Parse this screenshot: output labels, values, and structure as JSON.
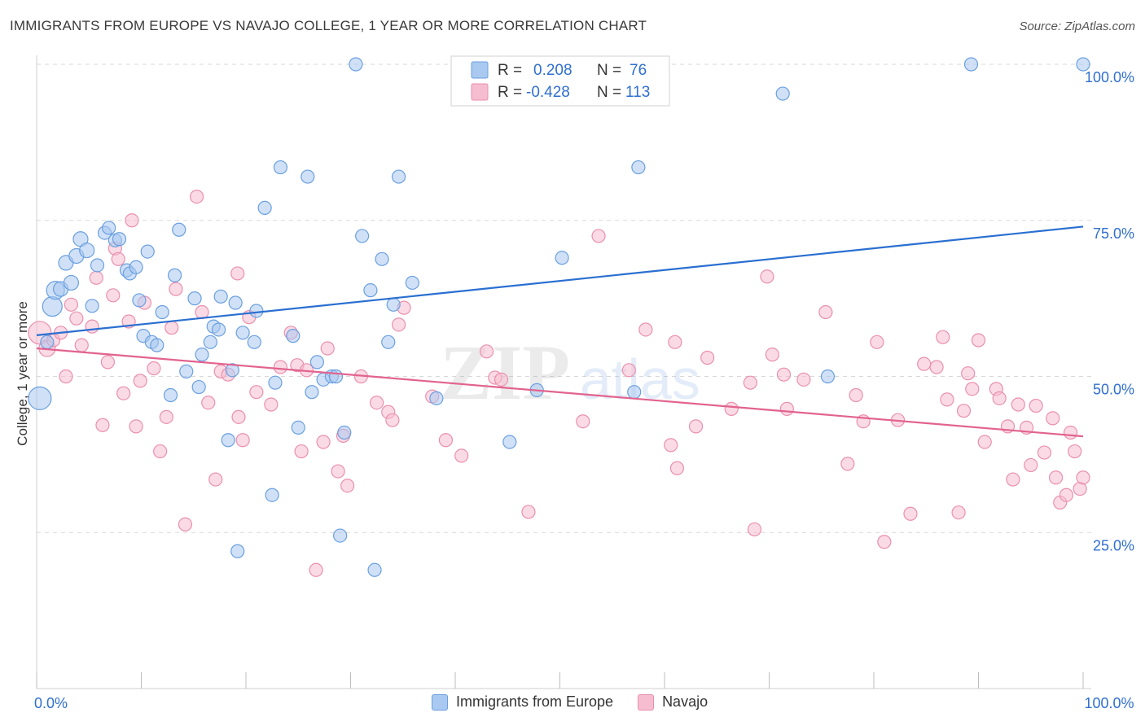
{
  "title": "IMMIGRANTS FROM EUROPE VS NAVAJO COLLEGE, 1 YEAR OR MORE CORRELATION CHART",
  "source": "Source: ZipAtlas.com",
  "watermark": {
    "zip": "ZIP",
    "atlas": "atlas"
  },
  "legend_box": {
    "r_label": "R =",
    "n_label": "N =",
    "rows": [
      {
        "series": "Immigrants from Europe",
        "r": "0.208",
        "n": "76"
      },
      {
        "series": "Navajo",
        "r": "-0.428",
        "n": "113"
      }
    ]
  },
  "colors": {
    "blue_fill": "#a9c9f0",
    "blue_stroke": "#6a9fe0",
    "blue_line": "#2a6fd1",
    "pink_fill": "#f6bdd0",
    "pink_stroke": "#ea8fae",
    "pink_line": "#e2638f",
    "value_text": "#2f6fd0",
    "grid": "#d8d8d8"
  },
  "chart_data": {
    "type": "scatter",
    "title": "IMMIGRANTS FROM EUROPE VS NAVAJO COLLEGE, 1 YEAR OR MORE CORRELATION CHART",
    "xlabel": "",
    "ylabel": "College, 1 year or more",
    "xlim": [
      0,
      100
    ],
    "ylim": [
      0,
      102
    ],
    "x_tick_labels": [
      {
        "value": 0,
        "label": "0.0%"
      },
      {
        "value": 100,
        "label": "100.0%"
      }
    ],
    "y_tick_labels": [
      {
        "value": 25,
        "label": "25.0%"
      },
      {
        "value": 50,
        "label": "50.0%"
      },
      {
        "value": 75,
        "label": "75.0%"
      },
      {
        "value": 100,
        "label": "100.0%"
      }
    ],
    "legend": [
      "Immigrants from Europe",
      "Navajo"
    ],
    "series": [
      {
        "name": "Immigrants from Europe",
        "r": 0.208,
        "n": 76,
        "trend": {
          "x": [
            0,
            100
          ],
          "y": [
            56.6,
            74.0
          ]
        },
        "points": [
          [
            0.3,
            46.5,
            14
          ],
          [
            1.0,
            55.5,
            8
          ],
          [
            1.5,
            61.2,
            12
          ],
          [
            1.8,
            63.8,
            11
          ],
          [
            2.3,
            64.0,
            9
          ],
          [
            2.8,
            68.2,
            9
          ],
          [
            3.3,
            65.0,
            9
          ],
          [
            3.8,
            69.3,
            9
          ],
          [
            4.2,
            72.0,
            9
          ],
          [
            4.8,
            70.2,
            9
          ],
          [
            5.3,
            61.3,
            8
          ],
          [
            5.8,
            67.8,
            8
          ],
          [
            6.5,
            73.0,
            8
          ],
          [
            6.9,
            73.8,
            8
          ],
          [
            7.5,
            71.8,
            8
          ],
          [
            7.9,
            72.0,
            8
          ],
          [
            8.6,
            67.0,
            8
          ],
          [
            8.9,
            66.5,
            8
          ],
          [
            9.5,
            67.5,
            8
          ],
          [
            9.8,
            62.2,
            8
          ],
          [
            10.6,
            70.0,
            8
          ],
          [
            10.2,
            56.5,
            8
          ],
          [
            11.0,
            55.5,
            8
          ],
          [
            11.5,
            55.0,
            8
          ],
          [
            12.0,
            60.3,
            8
          ],
          [
            12.8,
            47.0,
            8
          ],
          [
            13.2,
            66.2,
            8
          ],
          [
            13.6,
            73.5,
            8
          ],
          [
            14.3,
            50.8,
            8
          ],
          [
            15.1,
            62.5,
            8
          ],
          [
            15.5,
            48.3,
            8
          ],
          [
            15.8,
            53.5,
            8
          ],
          [
            16.6,
            55.5,
            8
          ],
          [
            16.9,
            58.0,
            8
          ],
          [
            17.4,
            57.5,
            8
          ],
          [
            17.6,
            62.8,
            8
          ],
          [
            18.7,
            51.0,
            8
          ],
          [
            18.3,
            39.8,
            8
          ],
          [
            19.0,
            61.8,
            8
          ],
          [
            19.2,
            22.0,
            8
          ],
          [
            19.7,
            57.0,
            8
          ],
          [
            20.8,
            55.5,
            8
          ],
          [
            21.0,
            60.5,
            8
          ],
          [
            21.8,
            77.0,
            8
          ],
          [
            22.5,
            31.0,
            8
          ],
          [
            22.8,
            49.0,
            8
          ],
          [
            23.3,
            83.5,
            8
          ],
          [
            24.5,
            56.5,
            8
          ],
          [
            25.0,
            41.8,
            8
          ],
          [
            25.9,
            82.0,
            8
          ],
          [
            26.3,
            47.5,
            8
          ],
          [
            26.8,
            52.3,
            8
          ],
          [
            27.4,
            49.5,
            8
          ],
          [
            28.2,
            50.0,
            8
          ],
          [
            28.6,
            50.0,
            8
          ],
          [
            29.0,
            24.5,
            8
          ],
          [
            29.4,
            41.0,
            8
          ],
          [
            30.5,
            100.0,
            8
          ],
          [
            31.1,
            72.5,
            8
          ],
          [
            31.9,
            63.8,
            8
          ],
          [
            32.3,
            19.0,
            8
          ],
          [
            33.0,
            68.8,
            8
          ],
          [
            33.6,
            55.5,
            8
          ],
          [
            34.1,
            61.5,
            8
          ],
          [
            34.6,
            82.0,
            8
          ],
          [
            35.9,
            65.0,
            8
          ],
          [
            38.2,
            46.5,
            8
          ],
          [
            45.2,
            39.5,
            8
          ],
          [
            47.8,
            47.8,
            8
          ],
          [
            50.2,
            69.0,
            8
          ],
          [
            57.1,
            47.5,
            8
          ],
          [
            57.5,
            83.5,
            8
          ],
          [
            71.3,
            95.3,
            8
          ],
          [
            75.6,
            50.0,
            8
          ],
          [
            89.3,
            100.0,
            8
          ],
          [
            100.0,
            100.0,
            8
          ]
        ]
      },
      {
        "name": "Navajo",
        "r": -0.428,
        "n": 113,
        "trend": {
          "x": [
            0,
            100
          ],
          "y": [
            54.5,
            40.4
          ]
        },
        "points": [
          [
            0.3,
            57.0,
            14
          ],
          [
            1.0,
            54.5,
            10
          ],
          [
            1.6,
            55.8,
            8
          ],
          [
            2.3,
            57.0,
            8
          ],
          [
            2.8,
            50.0,
            8
          ],
          [
            3.3,
            61.5,
            8
          ],
          [
            3.8,
            59.3,
            8
          ],
          [
            4.3,
            55.0,
            8
          ],
          [
            5.3,
            58.0,
            8
          ],
          [
            5.7,
            65.8,
            8
          ],
          [
            6.3,
            42.2,
            8
          ],
          [
            6.8,
            52.3,
            8
          ],
          [
            7.3,
            63.0,
            8
          ],
          [
            7.5,
            70.5,
            8
          ],
          [
            7.8,
            68.8,
            8
          ],
          [
            8.3,
            47.3,
            8
          ],
          [
            8.8,
            58.8,
            8
          ],
          [
            9.1,
            75.0,
            8
          ],
          [
            9.5,
            42.0,
            8
          ],
          [
            9.9,
            49.3,
            8
          ],
          [
            10.3,
            61.8,
            8
          ],
          [
            11.2,
            51.3,
            8
          ],
          [
            11.8,
            38.0,
            8
          ],
          [
            12.4,
            43.5,
            8
          ],
          [
            12.9,
            57.8,
            8
          ],
          [
            13.3,
            64.0,
            8
          ],
          [
            14.2,
            26.3,
            8
          ],
          [
            15.3,
            78.8,
            8
          ],
          [
            15.8,
            60.3,
            8
          ],
          [
            16.4,
            45.8,
            8
          ],
          [
            17.1,
            33.5,
            8
          ],
          [
            17.6,
            50.8,
            8
          ],
          [
            18.3,
            50.3,
            8
          ],
          [
            19.2,
            66.5,
            8
          ],
          [
            19.3,
            43.5,
            8
          ],
          [
            19.7,
            39.8,
            8
          ],
          [
            20.3,
            59.5,
            8
          ],
          [
            21.0,
            47.5,
            8
          ],
          [
            22.4,
            45.5,
            8
          ],
          [
            23.3,
            51.5,
            8
          ],
          [
            24.3,
            57.0,
            8
          ],
          [
            24.9,
            51.8,
            8
          ],
          [
            25.3,
            38.0,
            8
          ],
          [
            25.8,
            51.0,
            8
          ],
          [
            26.7,
            19.0,
            8
          ],
          [
            27.4,
            39.5,
            8
          ],
          [
            27.8,
            54.5,
            8
          ],
          [
            28.8,
            34.8,
            8
          ],
          [
            29.3,
            40.5,
            8
          ],
          [
            29.7,
            32.5,
            8
          ],
          [
            31.0,
            50.0,
            8
          ],
          [
            32.5,
            45.8,
            8
          ],
          [
            33.6,
            44.3,
            8
          ],
          [
            34.0,
            43.0,
            8
          ],
          [
            34.6,
            58.3,
            8
          ],
          [
            35.1,
            61.0,
            8
          ],
          [
            37.8,
            46.8,
            8
          ],
          [
            39.1,
            39.8,
            8
          ],
          [
            40.6,
            37.3,
            8
          ],
          [
            43.0,
            54.0,
            8
          ],
          [
            43.8,
            49.8,
            8
          ],
          [
            44.4,
            49.5,
            8
          ],
          [
            47.0,
            28.3,
            8
          ],
          [
            52.2,
            42.8,
            8
          ],
          [
            53.7,
            72.5,
            8
          ],
          [
            56.6,
            51.0,
            8
          ],
          [
            58.2,
            57.5,
            8
          ],
          [
            60.6,
            39.0,
            8
          ],
          [
            61.2,
            35.3,
            8
          ],
          [
            61.0,
            55.5,
            8
          ],
          [
            63.0,
            42.0,
            8
          ],
          [
            64.1,
            53.0,
            8
          ],
          [
            66.4,
            44.8,
            8
          ],
          [
            68.2,
            49.0,
            8
          ],
          [
            68.6,
            25.5,
            8
          ],
          [
            69.8,
            66.0,
            8
          ],
          [
            70.3,
            53.5,
            8
          ],
          [
            71.4,
            50.3,
            8
          ],
          [
            71.7,
            44.8,
            8
          ],
          [
            73.3,
            49.5,
            8
          ],
          [
            75.4,
            60.3,
            8
          ],
          [
            77.5,
            36.0,
            8
          ],
          [
            78.3,
            47.0,
            8
          ],
          [
            79.0,
            42.8,
            8
          ],
          [
            80.3,
            55.5,
            8
          ],
          [
            81.0,
            23.5,
            8
          ],
          [
            82.3,
            43.0,
            8
          ],
          [
            83.5,
            28.0,
            8
          ],
          [
            84.8,
            52.0,
            8
          ],
          [
            86.0,
            51.5,
            8
          ],
          [
            86.6,
            56.3,
            8
          ],
          [
            87.0,
            46.3,
            8
          ],
          [
            88.1,
            28.2,
            8
          ],
          [
            88.6,
            44.5,
            8
          ],
          [
            89.0,
            50.5,
            8
          ],
          [
            89.4,
            48.0,
            8
          ],
          [
            90.0,
            55.8,
            8
          ],
          [
            90.6,
            39.5,
            8
          ],
          [
            91.7,
            48.0,
            8
          ],
          [
            92.0,
            46.5,
            8
          ],
          [
            92.8,
            42.0,
            8
          ],
          [
            93.3,
            33.5,
            8
          ],
          [
            93.8,
            45.5,
            8
          ],
          [
            94.6,
            41.8,
            8
          ],
          [
            95.0,
            35.8,
            8
          ],
          [
            95.5,
            45.3,
            8
          ],
          [
            96.3,
            37.8,
            8
          ],
          [
            97.1,
            43.3,
            8
          ],
          [
            97.4,
            33.8,
            8
          ],
          [
            97.8,
            29.8,
            8
          ],
          [
            98.4,
            31.0,
            8
          ],
          [
            98.8,
            41.0,
            8
          ],
          [
            99.2,
            38.0,
            8
          ],
          [
            99.7,
            32.0,
            8
          ],
          [
            100.0,
            33.8,
            8
          ]
        ]
      }
    ]
  }
}
